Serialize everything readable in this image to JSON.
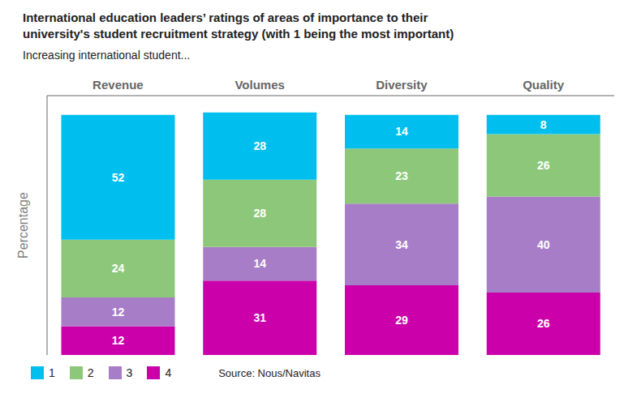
{
  "chart_data": {
    "type": "bar",
    "stacked": true,
    "title": [
      "International education leaders’ ratings of areas of importance to their",
      "university's student recruitment strategy (with 1 being the most important)"
    ],
    "subtitle": "Increasing international student...",
    "source": "Source: Nous/Navitas",
    "ylabel": "Percentage",
    "categories": [
      "Revenue",
      "Volumes",
      "Diversity",
      "Quality"
    ],
    "series": [
      {
        "name": "1",
        "color": "#00BFEF",
        "values": [
          52,
          28,
          14,
          8
        ]
      },
      {
        "name": "2",
        "color": "#8DC87A",
        "values": [
          24,
          28,
          23,
          26
        ]
      },
      {
        "name": "3",
        "color": "#A87DC8",
        "values": [
          12,
          14,
          34,
          40
        ]
      },
      {
        "name": "4",
        "color": "#CC00AA",
        "values": [
          12,
          31,
          29,
          26
        ]
      }
    ],
    "ylim": [
      0,
      108
    ],
    "yticks": [],
    "grid": false,
    "legend": "lower left",
    "data_labels": true,
    "tick_labels": "x"
  }
}
